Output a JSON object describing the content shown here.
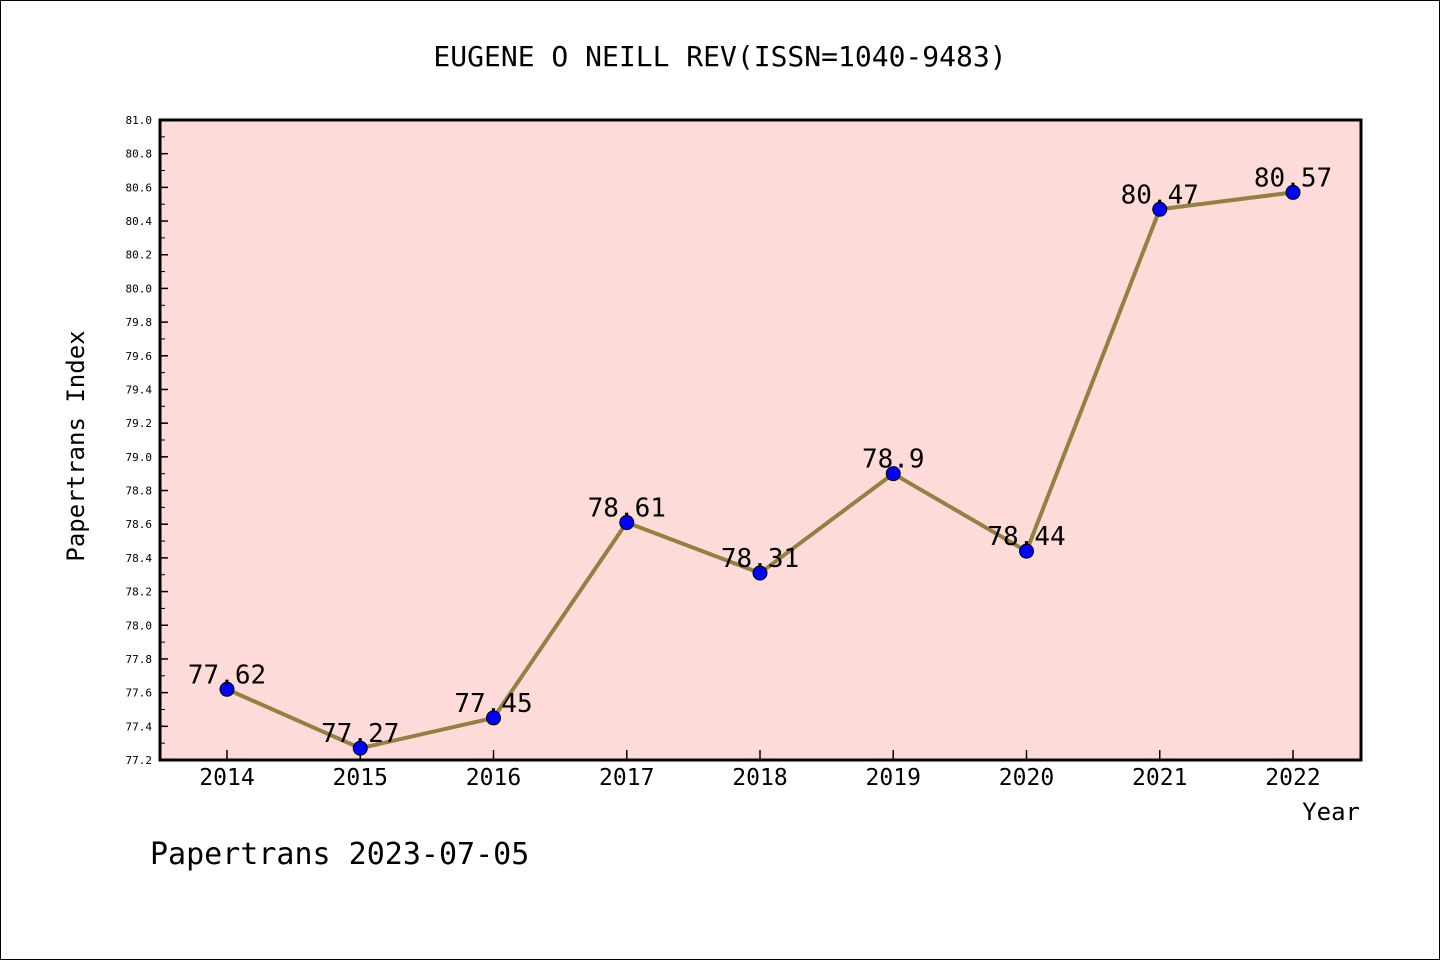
{
  "chart_data": {
    "type": "line",
    "title": "EUGENE O NEILL REV(ISSN=1040-9483)",
    "xlabel": "Year",
    "ylabel": "Papertrans Index",
    "categories": [
      "2014",
      "2015",
      "2016",
      "2017",
      "2018",
      "2019",
      "2020",
      "2021",
      "2022"
    ],
    "values": [
      77.62,
      77.27,
      77.45,
      78.61,
      78.31,
      78.9,
      78.44,
      80.47,
      80.57
    ],
    "value_labels": [
      "77.62",
      "77.27",
      "77.45",
      "78.61",
      "78.31",
      "78.9",
      "78.44",
      "80.47",
      "80.57"
    ],
    "ylim": [
      77.2,
      81.0
    ],
    "yticks": [
      "77.2",
      "77.4",
      "77.6",
      "77.8",
      "78.0",
      "78.2",
      "78.4",
      "78.6",
      "78.8",
      "79.0",
      "79.2",
      "79.4",
      "79.6",
      "79.8",
      "80.0",
      "80.2",
      "80.4",
      "80.6",
      "80.8",
      "81.0"
    ],
    "grid": false,
    "colors": {
      "plot_background": "#fddbd8",
      "line": "#948040",
      "marker": "#0000ff"
    }
  },
  "footer": "Papertrans 2023-07-05"
}
